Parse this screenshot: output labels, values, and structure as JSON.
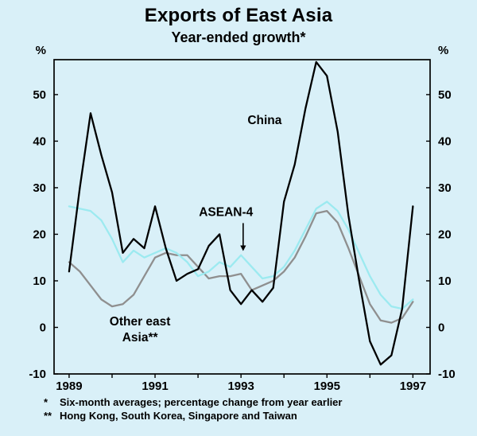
{
  "page": {
    "background": "#d9f0f8"
  },
  "chart_data": {
    "type": "line",
    "title": "Exports of East Asia",
    "subtitle": "Year-ended growth*",
    "ylabel_left": "%",
    "ylabel_right": "%",
    "ylim": [
      -10,
      57.5
    ],
    "yticks": [
      -10,
      0,
      10,
      20,
      30,
      40,
      50
    ],
    "xlim": [
      1988.65,
      1997.4
    ],
    "xticks": [
      1989,
      1990,
      1991,
      1992,
      1993,
      1994,
      1995,
      1996,
      1997
    ],
    "xtick_labels": [
      "1989",
      "",
      "1991",
      "",
      "1993",
      "",
      "1995",
      "",
      "1997"
    ],
    "grid": false,
    "legend": "inline-annotations",
    "frame_color": "#000000",
    "text_color": "#000000",
    "x": [
      1989,
      1989.25,
      1989.5,
      1989.75,
      1990,
      1990.25,
      1990.5,
      1990.75,
      1991,
      1991.25,
      1991.5,
      1991.75,
      1992,
      1992.25,
      1992.5,
      1992.75,
      1993,
      1993.25,
      1993.5,
      1993.75,
      1994,
      1994.25,
      1994.5,
      1994.75,
      1995,
      1995.25,
      1995.5,
      1995.75,
      1996,
      1996.25,
      1996.5,
      1996.75,
      1997
    ],
    "series": [
      {
        "id": "other-east-asia",
        "name": "Other east Asia**",
        "color": "#8f8f8f",
        "values": [
          14,
          12,
          9,
          6,
          4.5,
          5,
          7,
          11,
          15,
          16,
          15.5,
          15.5,
          13,
          10.5,
          11,
          11,
          11.5,
          8,
          9,
          10,
          12,
          15,
          19.5,
          24.5,
          25,
          22.5,
          17,
          11,
          5,
          1.5,
          1,
          2,
          5.5
        ]
      },
      {
        "id": "asean-4",
        "name": "ASEAN-4",
        "color": "#9ceaf0",
        "values": [
          26,
          25.5,
          25,
          23,
          19,
          14,
          16.5,
          15,
          16,
          17,
          16,
          14,
          11,
          12,
          14,
          13,
          15.5,
          13,
          10.5,
          11,
          13,
          16.5,
          21,
          25.5,
          27,
          25,
          21,
          16,
          11,
          7,
          4.5,
          4,
          6
        ]
      },
      {
        "id": "china",
        "name": "China",
        "color": "#000000",
        "values": [
          12,
          30,
          46,
          37,
          29,
          16,
          19,
          17,
          26,
          17,
          10,
          11.5,
          12.5,
          17.5,
          20,
          8,
          5,
          8,
          5.5,
          8.5,
          27,
          35,
          47,
          57,
          54,
          42,
          24,
          10,
          -3,
          -8,
          -6,
          4,
          26
        ]
      }
    ],
    "annotations": [
      {
        "id": "china",
        "text": "China",
        "x": 1993.55,
        "y": 44.5
      },
      {
        "id": "asean-4",
        "text": "ASEAN-4",
        "x": 1992.65,
        "y": 24.8,
        "arrow": {
          "x": 1993.05,
          "y_from": 22.4,
          "y_to": 16.4
        }
      },
      {
        "id": "other-east-asia",
        "lines": [
          "Other east",
          "Asia**"
        ],
        "x": 1990.65,
        "y": 1.3
      }
    ]
  },
  "footnotes": [
    {
      "marker": "*",
      "text": "Six-month averages; percentage change from year earlier"
    },
    {
      "marker": "**",
      "text": "Hong Kong, South Korea, Singapore and Taiwan"
    }
  ]
}
